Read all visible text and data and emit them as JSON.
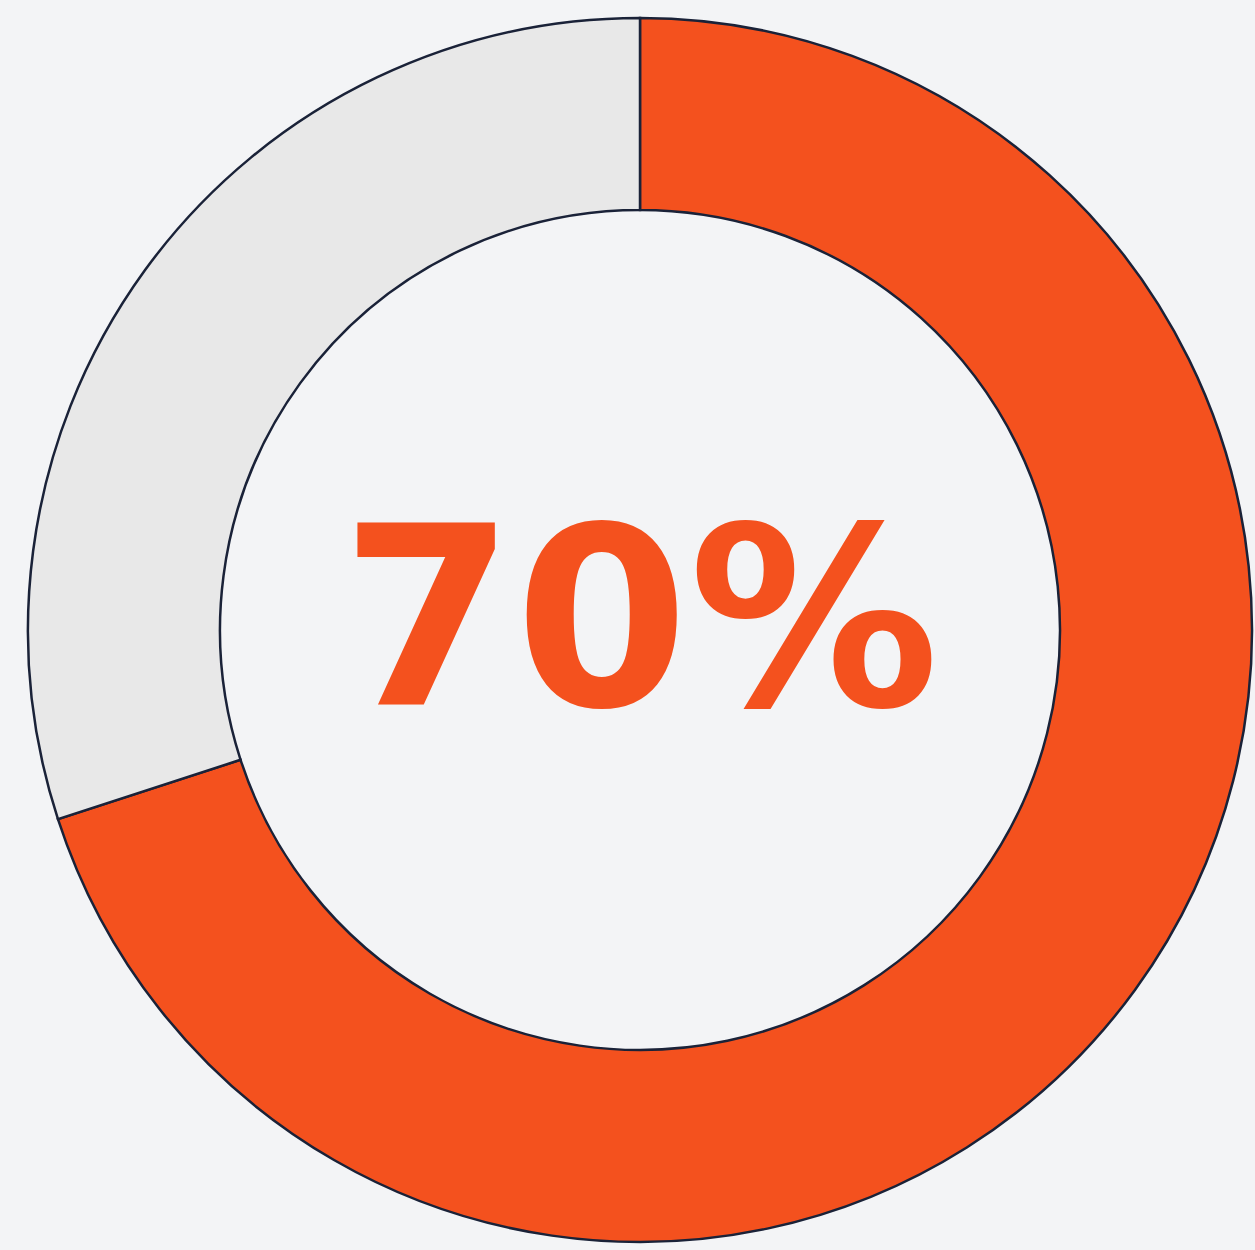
{
  "chart_data": {
    "type": "donut",
    "categories": [
      null,
      null
    ],
    "values": [
      70,
      30
    ],
    "colors": [
      "#f4511e",
      "#e8e8e8"
    ],
    "value_labels": [
      "70%",
      null
    ]
  }
}
